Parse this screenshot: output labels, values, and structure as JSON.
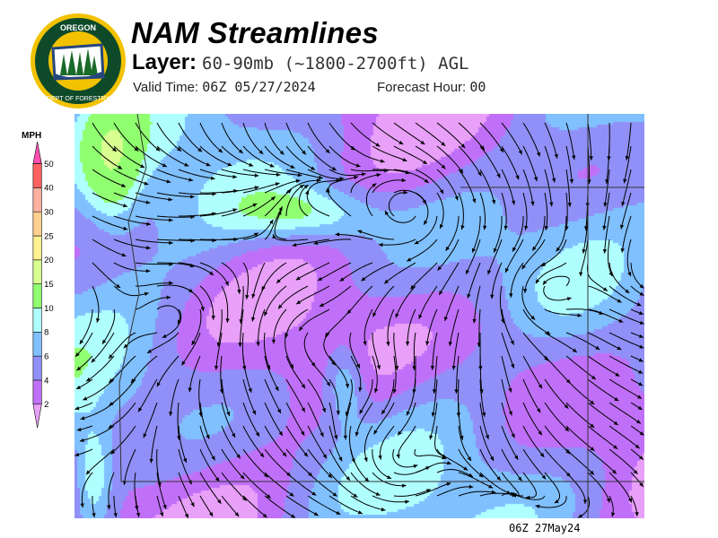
{
  "header": {
    "title": "NAM Streamlines",
    "layer_label": "Layer:",
    "layer_value": "60-90mb (~1800-2700ft) AGL",
    "valid_label": "Valid Time:",
    "valid_value": "06Z 05/27/2024",
    "forecast_hour_label": "Forecast Hour:",
    "forecast_hour_value": "00"
  },
  "logo": {
    "text": "OREGON DEPARTMENT OF FORESTRY"
  },
  "legend": {
    "unit": "MPH",
    "bins": [
      {
        "label": "2",
        "color": "#c070f8"
      },
      {
        "label": "4",
        "color": "#9090f8"
      },
      {
        "label": "6",
        "color": "#80c0ff"
      },
      {
        "label": "8",
        "color": "#b0ffff"
      },
      {
        "label": "10",
        "color": "#90ff70"
      },
      {
        "label": "15",
        "color": "#d8ff90"
      },
      {
        "label": "20",
        "color": "#fff090"
      },
      {
        "label": "25",
        "color": "#ffd090"
      },
      {
        "label": "30",
        "color": "#ffb0a0"
      },
      {
        "label": "40",
        "color": "#ff6060"
      },
      {
        "label": "50",
        "color": ""
      }
    ],
    "below_color": "#e8a0f8",
    "above_color": "#ff50b0"
  },
  "footer": {
    "timestamp": "06Z 27May24"
  }
}
